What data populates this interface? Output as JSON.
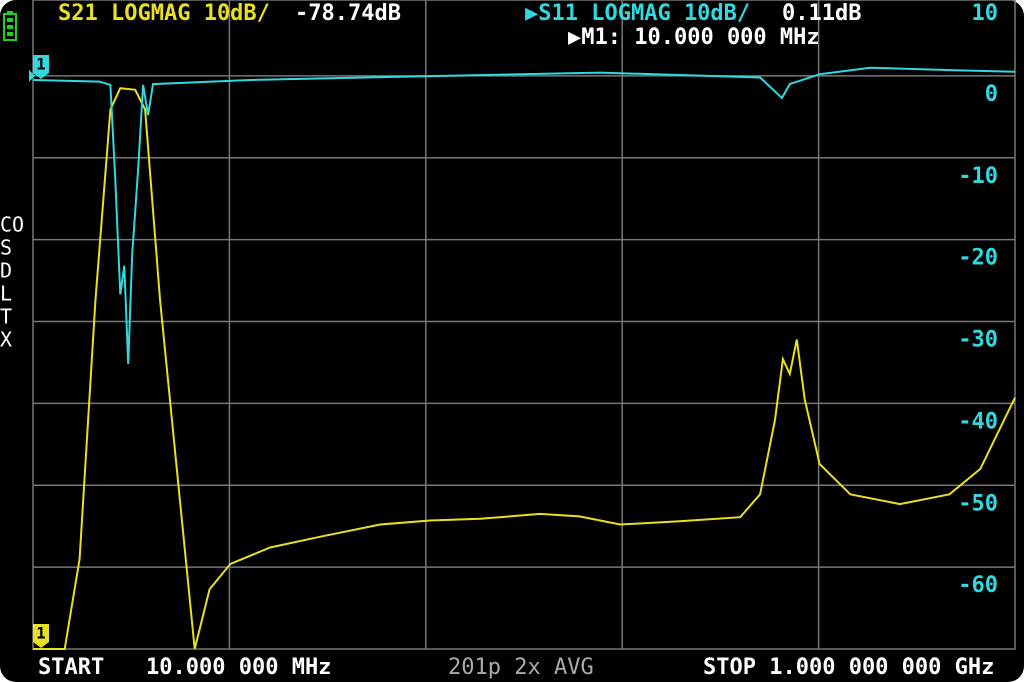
{
  "chart_data": {
    "type": "line",
    "ylim": [
      -70,
      10
    ],
    "yticks": [
      10,
      0,
      -10,
      -20,
      -30,
      -40,
      -50,
      -60
    ],
    "xlim": [
      10,
      1000
    ],
    "grid": true,
    "marker_readout": "▶M1: 10.000 000 MHz",
    "cal_status": [
      "CO",
      "S",
      "D",
      "L",
      "T",
      "X"
    ],
    "footer": {
      "start": "START",
      "start_freq": "10.000 000 MHz",
      "info": "201p 2x AVG",
      "stop": "STOP 1.000 000 000 GHz"
    },
    "series": [
      {
        "name": "S21 LOGMAG 10dB/",
        "readout": "-78.74dB",
        "marker_label": "1",
        "color": "#e8e020",
        "x": [
          10,
          42,
          57,
          73,
          88,
          98,
          113,
          123,
          138,
          158,
          173,
          188,
          209,
          249,
          299,
          360,
          410,
          461,
          521,
          561,
          602,
          662,
          723,
          743,
          758,
          766,
          773,
          780,
          788,
          803,
          834,
          884,
          934,
          965,
          1000
        ],
        "values": [
          -70,
          -70,
          -59,
          -27.3,
          -4.1,
          -1.5,
          -1.7,
          -4.1,
          -27.3,
          -51.7,
          -70,
          -62.7,
          -59.6,
          -57.6,
          -56.3,
          -54.8,
          -54.3,
          -54.1,
          -53.5,
          -53.8,
          -54.8,
          -54.4,
          -53.9,
          -51.1,
          -42,
          -34.6,
          -36.4,
          -32.2,
          -39.5,
          -47.4,
          -51.1,
          -52.3,
          -51.1,
          -48,
          -39.3
        ]
      },
      {
        "name": "▶S11 LOGMAG 10dB/",
        "readout": "0.11dB",
        "marker_label": "1",
        "color": "#30d8e0",
        "x": [
          10,
          77,
          88,
          93,
          98,
          102,
          106,
          110,
          116,
          121,
          126,
          131,
          229,
          380,
          582,
          743,
          765,
          773,
          803,
          854,
          934,
          1000
        ],
        "values": [
          -0.5,
          -0.7,
          -1.1,
          -12.7,
          -26.7,
          -23.2,
          -35.2,
          -21.8,
          -11.5,
          -1.1,
          -4.8,
          -1,
          -0.5,
          -0.1,
          0.4,
          -0.2,
          -2.7,
          -1,
          0.2,
          1,
          0.7,
          0.5
        ]
      }
    ]
  }
}
